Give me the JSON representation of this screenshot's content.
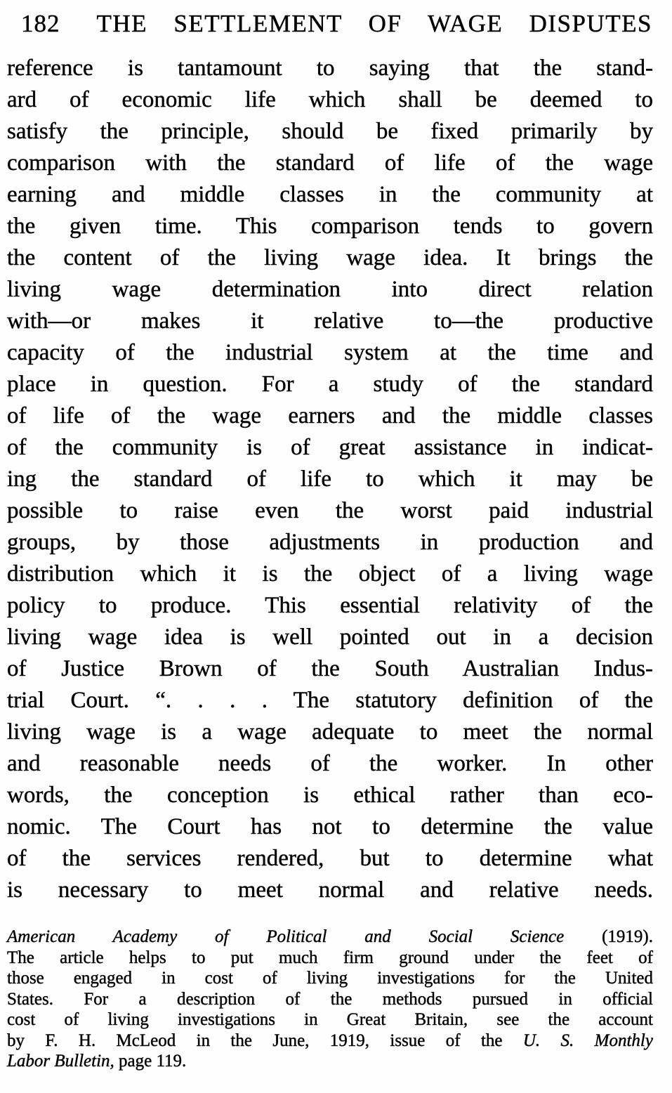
{
  "header": {
    "page_number": "182",
    "title": "THE SETTLEMENT OF WAGE DISPUTES"
  },
  "body": {
    "lines": [
      "reference is tantamount to saying that the stand-",
      "ard of economic life which shall be deemed to",
      "satisfy the principle, should be fixed primarily by",
      "comparison with the standard of life of the wage",
      "earning and middle classes in the community at",
      "the given time. This comparison tends to govern",
      "the content of the living wage idea. It brings the",
      "living wage determination into direct relation",
      "with—or makes it relative to—the productive",
      "capacity of the industrial system at the time and",
      "place in question. For a study of the standard",
      "of life of the wage earners and the middle classes",
      "of the community is of great assistance in indicat-",
      "ing the standard of life to which it may be",
      "possible to raise even the worst paid industrial",
      "groups, by those adjustments in production and",
      "distribution which it is the object of a living wage",
      "policy to produce. This essential relativity of the",
      "living wage idea is well pointed out in a decision",
      "of Justice Brown of the South Australian Indus-",
      "trial Court. “. . . . The statutory definition of the",
      "living wage is a wage adequate to meet the normal",
      "and reasonable needs of the worker. In other",
      "words, the conception is ethical rather than eco-",
      "nomic. The Court has not to determine the value",
      "of the services rendered, but to determine what",
      "is necessary to meet normal and relative needs."
    ]
  },
  "footnote": {
    "lines": [
      {
        "justify": true,
        "segments": [
          {
            "text": "American Academy of Political and Social Science",
            "italic": true
          },
          {
            "text": " (1919).",
            "italic": false
          }
        ]
      },
      {
        "justify": true,
        "segments": [
          {
            "text": "The article helps to put much firm ground under the feet of",
            "italic": false
          }
        ]
      },
      {
        "justify": true,
        "segments": [
          {
            "text": "those engaged in cost of living investigations for the United",
            "italic": false
          }
        ]
      },
      {
        "justify": true,
        "segments": [
          {
            "text": "States. For a description of the methods pursued in official",
            "italic": false
          }
        ]
      },
      {
        "justify": true,
        "segments": [
          {
            "text": "cost of living investigations in Great Britain, see the account",
            "italic": false
          }
        ]
      },
      {
        "justify": true,
        "segments": [
          {
            "text": "by F. H. McLeod in the June, 1919, issue of the ",
            "italic": false
          },
          {
            "text": "U. S. Monthly",
            "italic": true
          }
        ]
      },
      {
        "justify": false,
        "segments": [
          {
            "text": "Labor Bulletin,",
            "italic": true
          },
          {
            "text": " page 119.",
            "italic": false
          }
        ]
      }
    ]
  }
}
